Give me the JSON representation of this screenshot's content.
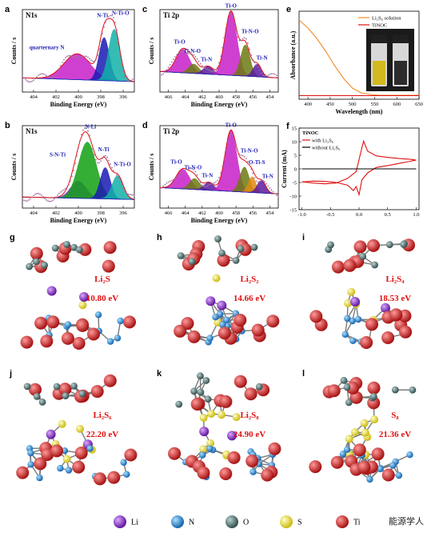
{
  "chart_data": [
    {
      "id": "a",
      "type": "area",
      "title": "N1s",
      "xlabel": "Binding Energy (eV)",
      "ylabel": "Counts / s",
      "xlim": [
        405,
        395
      ],
      "xticks": [
        404,
        402,
        400,
        398,
        396
      ],
      "peaks": [
        {
          "label": "quarternary N",
          "center": 400.1,
          "height": 0.33,
          "width": 1.2,
          "color": "#c81ec8"
        },
        {
          "label": "N-Ti",
          "center": 397.7,
          "height": 0.55,
          "width": 0.45,
          "color": "#1a1ab4"
        },
        {
          "label": "N-Ti-O",
          "center": 396.8,
          "height": 0.66,
          "width": 0.5,
          "color": "#10b0a8"
        }
      ],
      "baseline": 0.12
    },
    {
      "id": "b",
      "type": "area",
      "title": "N1s",
      "xlabel": "Binding Energy (eV)",
      "ylabel": "Counts / s",
      "xlim": [
        405,
        395
      ],
      "xticks": [
        404,
        402,
        400,
        398,
        396
      ],
      "peaks": [
        {
          "label": "S-N-Ti",
          "center": 400.0,
          "height": 0.22,
          "width": 0.7,
          "color": "#8a2be2"
        },
        {
          "label": "N-Li",
          "center": 399.2,
          "height": 0.72,
          "width": 0.8,
          "color": "#12a012"
        },
        {
          "label": "N-Ti",
          "center": 397.6,
          "height": 0.4,
          "width": 0.45,
          "color": "#1a1ab4"
        },
        {
          "label": "N-Ti-O",
          "center": 396.5,
          "height": 0.3,
          "width": 0.5,
          "color": "#10b0a8"
        }
      ],
      "baseline": 0.08
    },
    {
      "id": "c",
      "type": "area",
      "title": "Ti 2p",
      "xlabel": "Binding Energy (eV)",
      "ylabel": "Counts / s",
      "xlim": [
        467,
        453
      ],
      "xticks": [
        466,
        464,
        462,
        460,
        458,
        456,
        454
      ],
      "peaks": [
        {
          "label": "Ti-O",
          "center": 464.3,
          "height": 0.3,
          "width": 0.8,
          "color": "#c81ec8"
        },
        {
          "label": "Ti-N-O",
          "center": 463.0,
          "height": 0.12,
          "width": 0.6,
          "color": "#6b7a12"
        },
        {
          "label": "Ti-N",
          "center": 461.3,
          "height": 0.1,
          "width": 0.6,
          "color": "#5a1aa0"
        },
        {
          "label": "Ti-O",
          "center": 458.6,
          "height": 0.82,
          "width": 0.7,
          "color": "#c81ec8"
        },
        {
          "label": "Ti-N-O",
          "center": 456.9,
          "height": 0.4,
          "width": 0.55,
          "color": "#6b7a12"
        },
        {
          "label": "Ti-N",
          "center": 455.5,
          "height": 0.16,
          "width": 0.5,
          "color": "#5a1aa0"
        }
      ],
      "baseline": 0.2
    },
    {
      "id": "d",
      "type": "area",
      "title": "Ti 2p",
      "xlabel": "Binding Energy (eV)",
      "ylabel": "Counts / s",
      "xlim": [
        467,
        453
      ],
      "xticks": [
        466,
        464,
        462,
        460,
        458,
        456,
        454
      ],
      "peaks": [
        {
          "label": "Ti-O",
          "center": 464.3,
          "height": 0.25,
          "width": 0.8,
          "color": "#c81ec8"
        },
        {
          "label": "Ti-N-O",
          "center": 462.9,
          "height": 0.14,
          "width": 0.6,
          "color": "#6b7a12"
        },
        {
          "label": "Ti-N",
          "center": 461.2,
          "height": 0.1,
          "width": 0.6,
          "color": "#5a1aa0"
        },
        {
          "label": "Ti-O",
          "center": 458.6,
          "height": 0.78,
          "width": 0.7,
          "color": "#c81ec8"
        },
        {
          "label": "Ti-N-O",
          "center": 457.0,
          "height": 0.32,
          "width": 0.55,
          "color": "#6b7a12"
        },
        {
          "label": "O-Ti-S",
          "center": 456.1,
          "height": 0.2,
          "width": 0.45,
          "color": "#e08a10"
        },
        {
          "label": "Ti-N",
          "center": 455.0,
          "height": 0.16,
          "width": 0.5,
          "color": "#5a1aa0"
        }
      ],
      "baseline": 0.2
    },
    {
      "id": "e",
      "type": "line",
      "xlabel": "Wavelength (nm)",
      "ylabel": "Absorbance (a.u.)",
      "xlim": [
        380,
        650
      ],
      "xticks": [
        400,
        450,
        500,
        550,
        600,
        650
      ],
      "series": [
        {
          "name": "Li₂S₆ solution",
          "color": "#f08c28",
          "x": [
            380,
            400,
            420,
            440,
            460,
            480,
            500,
            520,
            540,
            560,
            600,
            650
          ],
          "y": [
            0.95,
            0.85,
            0.72,
            0.56,
            0.38,
            0.22,
            0.1,
            0.04,
            0.02,
            0.01,
            0.01,
            0.01
          ]
        },
        {
          "name": "TiNOC",
          "color": "#e01010",
          "x": [
            380,
            650
          ],
          "y": [
            0.005,
            0.005
          ]
        }
      ]
    },
    {
      "id": "f",
      "type": "line",
      "xlabel": "",
      "ylabel": "Current (mA)",
      "xlim": [
        -1.05,
        1.05
      ],
      "ylim": [
        -15,
        15
      ],
      "xticks": [
        -1.0,
        -0.5,
        0.0,
        0.5,
        1.0
      ],
      "yticks": [
        -15,
        -10,
        -5,
        0,
        5,
        10,
        15
      ],
      "legend_title": "TiNOC",
      "series": [
        {
          "name": "with Li₂S₆",
          "color": "#e01010",
          "x": [
            -1.0,
            -0.8,
            -0.6,
            -0.4,
            -0.2,
            -0.05,
            0.03,
            0.08,
            0.15,
            0.3,
            0.5,
            0.7,
            0.9,
            1.0,
            0.9,
            0.7,
            0.5,
            0.3,
            0.15,
            0.05,
            0.0,
            -0.05,
            -0.1,
            -0.2,
            -0.4,
            -0.6,
            -0.8,
            -1.0
          ],
          "y": [
            -4.8,
            -5.2,
            -5.5,
            -5.2,
            -3.5,
            -1.0,
            6.0,
            10.2,
            6.5,
            4.8,
            4.2,
            3.8,
            3.5,
            3.2,
            2.8,
            2.0,
            1.2,
            0.5,
            -1.5,
            -4.0,
            -9.5,
            -6.5,
            -8.0,
            -6.0,
            -5.0,
            -4.6,
            -4.5,
            -4.8
          ]
        },
        {
          "name": "without Li₂S₆",
          "color": "#000000",
          "x": [
            -1.0,
            1.0
          ],
          "y": [
            0.0,
            0.0
          ]
        }
      ]
    }
  ],
  "panels": {
    "a": {
      "label": "a",
      "title": "N1s",
      "xlabel": "Binding Energy (eV)",
      "ylabel": "Counts / s",
      "peak_labels": [
        "quarternary N",
        "N-Ti",
        "N-Ti-O"
      ]
    },
    "b": {
      "label": "b",
      "title": "N1s",
      "xlabel": "Binding Energy (eV)",
      "ylabel": "Counts / s",
      "peak_labels": [
        "S-N-Ti",
        "N-Li",
        "N-Ti",
        "N-Ti-O"
      ]
    },
    "c": {
      "label": "c",
      "title": "Ti 2p",
      "xlabel": "Binding Energy (eV)",
      "ylabel": "Counts / s",
      "peak_labels": [
        "Ti-O",
        "Ti-N-O",
        "Ti-N",
        "Ti-O",
        "Ti-N-O",
        "Ti-N"
      ]
    },
    "d": {
      "label": "d",
      "title": "Ti 2p",
      "xlabel": "Binding Energy (eV)",
      "ylabel": "Counts / s",
      "peak_labels": [
        "Ti-O",
        "Ti-N-O",
        "Ti-N",
        "Ti-O",
        "Ti-N-O",
        "O-Ti-S",
        "Ti-N"
      ]
    },
    "e": {
      "label": "e",
      "xlabel": "Wavelength (nm)",
      "ylabel": "Absorbance (a.u.)"
    },
    "f": {
      "label": "f",
      "ylabel": "Current (mA)",
      "legend_title": "TiNOC"
    }
  },
  "structures": [
    {
      "label": "g",
      "species": "Li₂S",
      "energy": "10.80 eV"
    },
    {
      "label": "h",
      "species": "Li₂S₂",
      "energy": "14.66 eV"
    },
    {
      "label": "i",
      "species": "Li₂S₄",
      "energy": "18.53 eV"
    },
    {
      "label": "j",
      "species": "Li₂S₆",
      "energy": "22.20 eV"
    },
    {
      "label": "k",
      "species": "Li₂S₈",
      "energy": "24.90 eV"
    },
    {
      "label": "l",
      "species": "S₈",
      "energy": "21.36 eV"
    }
  ],
  "atom_legend": [
    {
      "name": "Li",
      "color": "#8a1ed2"
    },
    {
      "name": "N",
      "color": "#1e8ce6"
    },
    {
      "name": "O",
      "color": "#4a6a6a"
    },
    {
      "name": "S",
      "color": "#f0e61e"
    },
    {
      "name": "Ti",
      "color": "#e01818"
    }
  ],
  "watermark": "能源学人"
}
